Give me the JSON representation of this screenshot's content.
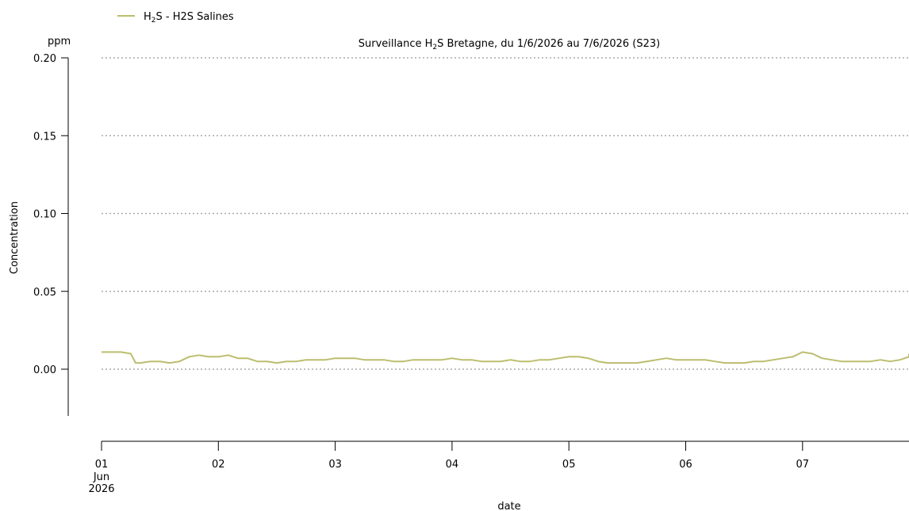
{
  "chart_data": {
    "type": "line",
    "title": {
      "prefix": "Surveillance H",
      "subscript": "2",
      "suffix": "S Bretagne, du 1/6/2026 au 7/6/2026 (S23)"
    },
    "xlabel": "date",
    "ylabel": "Concentration",
    "y_unit": "ppm",
    "ylim": [
      -0.03,
      0.2
    ],
    "y_ticks": [
      {
        "value": 0.0,
        "label": "0.00"
      },
      {
        "value": 0.05,
        "label": "0.05"
      },
      {
        "value": 0.1,
        "label": "0.10"
      },
      {
        "value": 0.15,
        "label": "0.15"
      },
      {
        "value": 0.2,
        "label": "0.20"
      }
    ],
    "grid": "horizontal dotted",
    "xlim": [
      "2026-06-01T00:00",
      "2026-06-07T23:00"
    ],
    "x_ticks": [
      {
        "value": "2026-06-01",
        "label": "01",
        "sublabel1": "Jun",
        "sublabel2": "2026"
      },
      {
        "value": "2026-06-02",
        "label": "02"
      },
      {
        "value": "2026-06-03",
        "label": "03"
      },
      {
        "value": "2026-06-04",
        "label": "04"
      },
      {
        "value": "2026-06-05",
        "label": "05"
      },
      {
        "value": "2026-06-06",
        "label": "06"
      },
      {
        "value": "2026-06-07",
        "label": "07"
      }
    ],
    "legend": {
      "placement": "top-left",
      "entries": [
        {
          "prefix": "H",
          "subscript": "2",
          "suffix": "S - H2S Salines",
          "color": "#bcbd6e"
        }
      ]
    },
    "series": [
      {
        "name": "H2S - H2S Salines",
        "color": "#bcbd6e",
        "x": [
          "2026-06-01T00:00",
          "2026-06-01T02:00",
          "2026-06-01T04:00",
          "2026-06-01T06:00",
          "2026-06-01T07:00",
          "2026-06-01T08:00",
          "2026-06-01T10:00",
          "2026-06-01T12:00",
          "2026-06-01T14:00",
          "2026-06-01T16:00",
          "2026-06-01T18:00",
          "2026-06-01T20:00",
          "2026-06-01T22:00",
          "2026-06-02T00:00",
          "2026-06-02T02:00",
          "2026-06-02T04:00",
          "2026-06-02T06:00",
          "2026-06-02T08:00",
          "2026-06-02T10:00",
          "2026-06-02T12:00",
          "2026-06-02T14:00",
          "2026-06-02T16:00",
          "2026-06-02T18:00",
          "2026-06-02T20:00",
          "2026-06-02T22:00",
          "2026-06-03T00:00",
          "2026-06-03T02:00",
          "2026-06-03T04:00",
          "2026-06-03T06:00",
          "2026-06-03T08:00",
          "2026-06-03T10:00",
          "2026-06-03T12:00",
          "2026-06-03T14:00",
          "2026-06-03T16:00",
          "2026-06-03T18:00",
          "2026-06-03T20:00",
          "2026-06-03T22:00",
          "2026-06-04T00:00",
          "2026-06-04T02:00",
          "2026-06-04T04:00",
          "2026-06-04T06:00",
          "2026-06-04T08:00",
          "2026-06-04T10:00",
          "2026-06-04T12:00",
          "2026-06-04T14:00",
          "2026-06-04T16:00",
          "2026-06-04T18:00",
          "2026-06-04T20:00",
          "2026-06-04T22:00",
          "2026-06-05T00:00",
          "2026-06-05T02:00",
          "2026-06-05T04:00",
          "2026-06-05T06:00",
          "2026-06-05T08:00",
          "2026-06-05T10:00",
          "2026-06-05T12:00",
          "2026-06-05T14:00",
          "2026-06-05T16:00",
          "2026-06-05T18:00",
          "2026-06-05T20:00",
          "2026-06-05T22:00",
          "2026-06-06T00:00",
          "2026-06-06T02:00",
          "2026-06-06T04:00",
          "2026-06-06T06:00",
          "2026-06-06T08:00",
          "2026-06-06T10:00",
          "2026-06-06T12:00",
          "2026-06-06T14:00",
          "2026-06-06T16:00",
          "2026-06-06T18:00",
          "2026-06-06T20:00",
          "2026-06-06T22:00",
          "2026-06-07T00:00",
          "2026-06-07T02:00",
          "2026-06-07T04:00",
          "2026-06-07T06:00",
          "2026-06-07T08:00",
          "2026-06-07T10:00",
          "2026-06-07T12:00",
          "2026-06-07T14:00",
          "2026-06-07T16:00",
          "2026-06-07T18:00",
          "2026-06-07T20:00",
          "2026-06-07T22:00",
          "2026-06-07T23:00"
        ],
        "values": [
          0.011,
          0.011,
          0.011,
          0.01,
          0.004,
          0.004,
          0.005,
          0.005,
          0.004,
          0.005,
          0.008,
          0.009,
          0.008,
          0.008,
          0.009,
          0.007,
          0.007,
          0.005,
          0.005,
          0.004,
          0.005,
          0.005,
          0.006,
          0.006,
          0.006,
          0.007,
          0.007,
          0.007,
          0.006,
          0.006,
          0.006,
          0.005,
          0.005,
          0.006,
          0.006,
          0.006,
          0.006,
          0.007,
          0.006,
          0.006,
          0.005,
          0.005,
          0.005,
          0.006,
          0.005,
          0.005,
          0.006,
          0.006,
          0.007,
          0.008,
          0.008,
          0.007,
          0.005,
          0.004,
          0.004,
          0.004,
          0.004,
          0.005,
          0.006,
          0.007,
          0.006,
          0.006,
          0.006,
          0.006,
          0.005,
          0.004,
          0.004,
          0.004,
          0.005,
          0.005,
          0.006,
          0.007,
          0.008,
          0.011,
          0.01,
          0.007,
          0.006,
          0.005,
          0.005,
          0.005,
          0.005,
          0.006,
          0.005,
          0.006,
          0.008,
          0.01
        ]
      }
    ]
  }
}
